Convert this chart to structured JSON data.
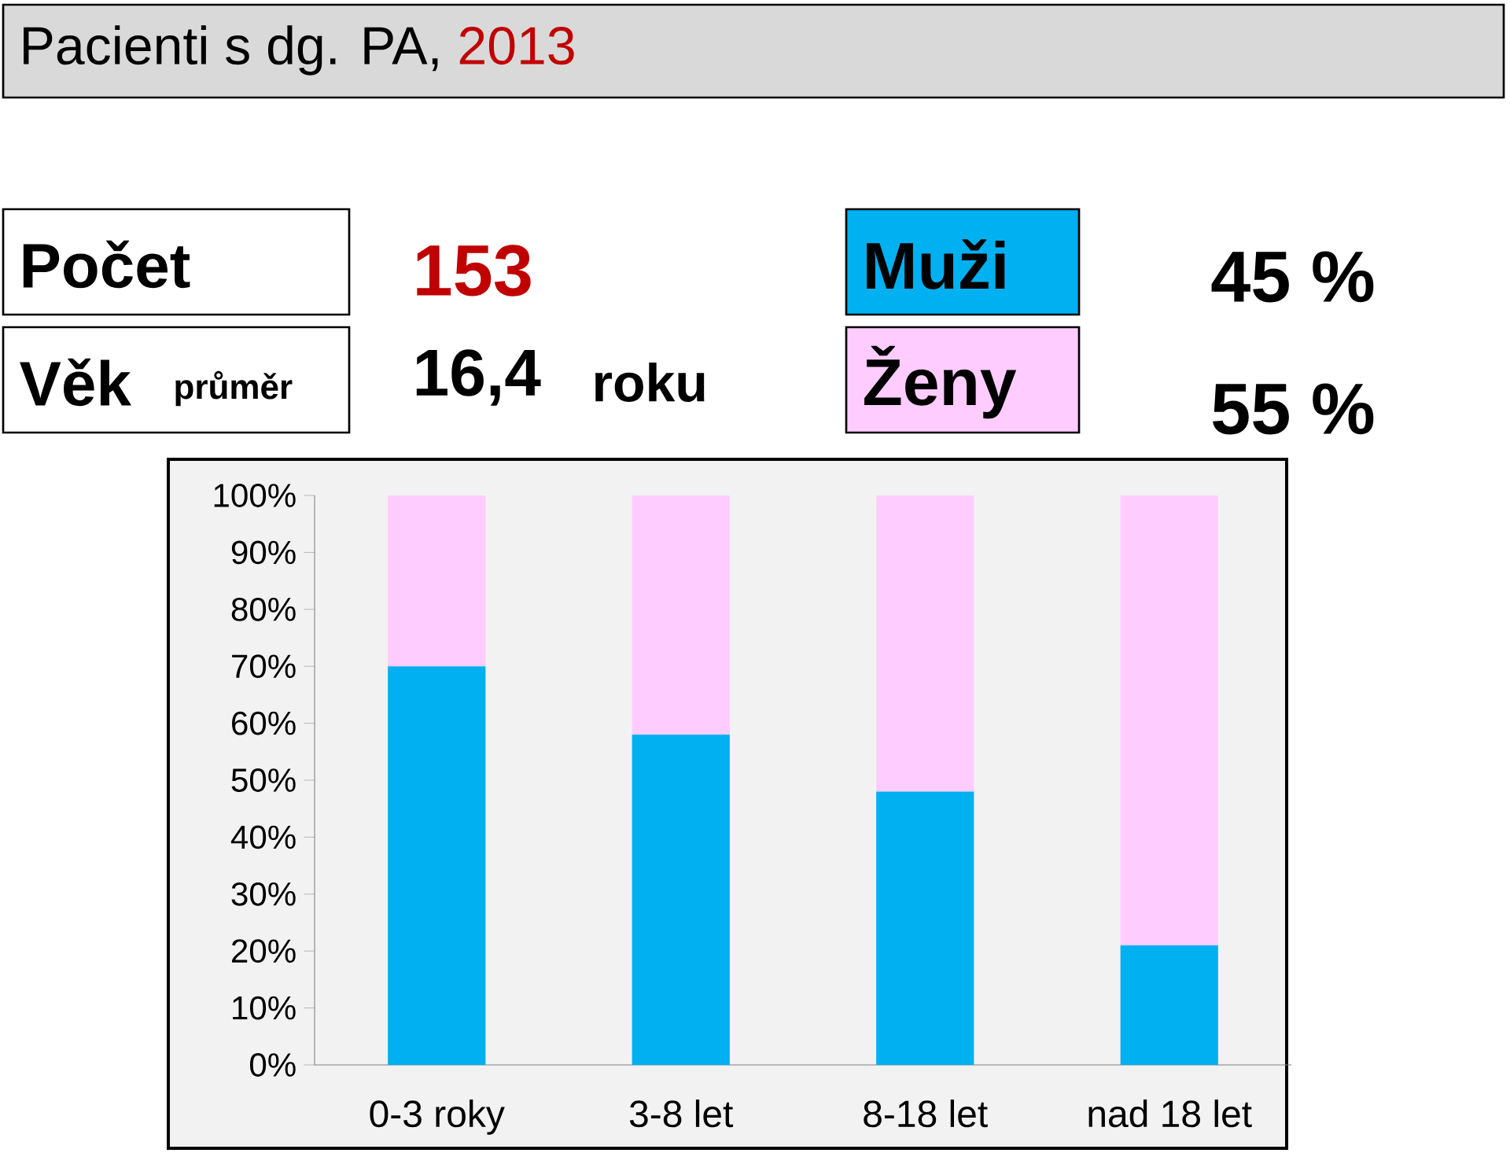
{
  "chart_data": {
    "type": "bar",
    "stacked": true,
    "title": "Pacienti s dg. PA,",
    "subtitle": "2013",
    "categories": [
      "0-3 roky",
      "3-8 let",
      "8-18 let",
      "nad 18 let"
    ],
    "series": [
      {
        "name": "Muži",
        "color": "#00b0f0",
        "values": [
          70,
          58,
          48,
          21
        ]
      },
      {
        "name": "Ženy",
        "color": "#ffccff",
        "values": [
          30,
          42,
          52,
          79
        ]
      }
    ],
    "ylim": [
      0,
      100
    ],
    "yticks": [
      {
        "value": 0,
        "label": "0%"
      },
      {
        "value": 10,
        "label": "10%"
      },
      {
        "value": 20,
        "label": "20%"
      },
      {
        "value": 30,
        "label": "30%"
      },
      {
        "value": 40,
        "label": "40%"
      },
      {
        "value": 50,
        "label": "50%"
      },
      {
        "value": 60,
        "label": "60%"
      },
      {
        "value": 70,
        "label": "70%"
      },
      {
        "value": 80,
        "label": "80%"
      },
      {
        "value": 90,
        "label": "90%"
      },
      {
        "value": 100,
        "label": "100%"
      }
    ],
    "legend": "top",
    "annotations": [
      "Počet",
      "153",
      "Věk",
      "průměr",
      "16,4",
      "roku",
      "45 %",
      "55 %"
    ]
  }
}
